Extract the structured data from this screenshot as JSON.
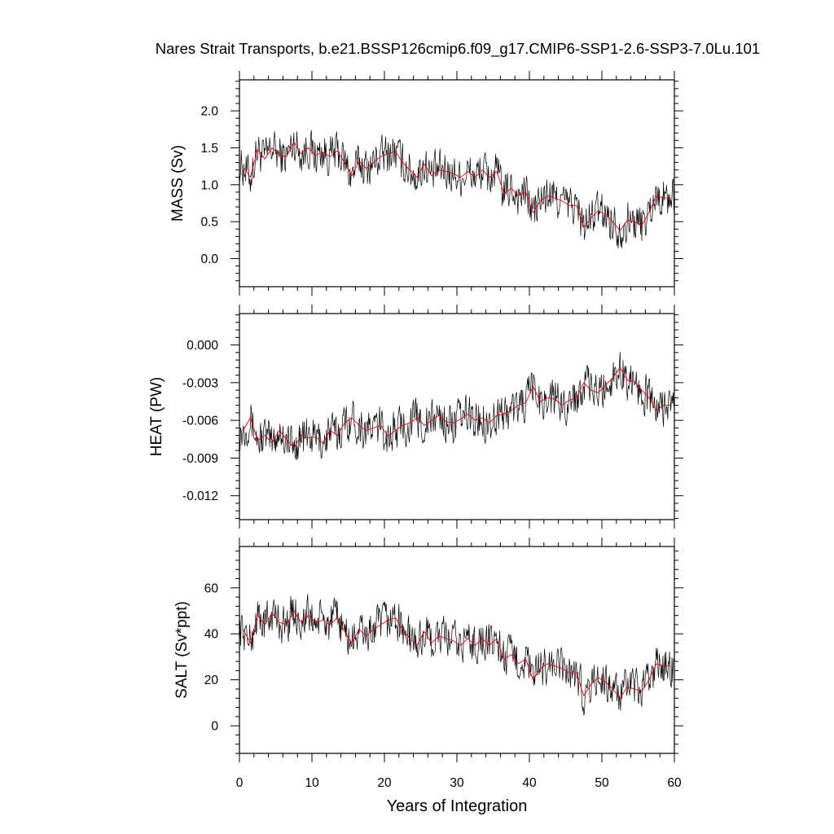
{
  "chart_data": {
    "type": "line",
    "title": "Nares Strait Transports, b.e21.BSSP126cmip6.f09_g17.CMIP6-SSP1-2.6-SSP3-7.0Lu.101",
    "xlabel": "Years of Integration",
    "xlim": [
      0,
      60
    ],
    "xticks": [
      0,
      10,
      20,
      30,
      40,
      50,
      60
    ],
    "xtick_labels": [
      "0",
      "10",
      "20",
      "30",
      "40",
      "50",
      "60"
    ],
    "grid": false,
    "line_colors": {
      "monthly": "#000000",
      "annual": "#e8000b"
    },
    "panels": [
      {
        "ylabel": "MASS (Sv)",
        "ylim": [
          -0.38,
          2.42
        ],
        "yticks": [
          0.0,
          0.5,
          1.0,
          1.5,
          2.0
        ],
        "ytick_labels": [
          "0.0",
          "0.5",
          "1.0",
          "1.5",
          "2.0"
        ],
        "annual": {
          "x": [
            0.5,
            1.5,
            2.5,
            3.5,
            4.5,
            5.5,
            6.5,
            7.5,
            8.5,
            9.5,
            10.5,
            11.5,
            12.5,
            13.5,
            14.5,
            15.5,
            16.5,
            17.5,
            18.5,
            19.5,
            20.5,
            21.5,
            22.5,
            23.5,
            24.5,
            25.5,
            26.5,
            27.5,
            28.5,
            29.5,
            30.5,
            31.5,
            32.5,
            33.5,
            34.5,
            35.5,
            36.5,
            37.5,
            38.5,
            39.5,
            40.5,
            41.5,
            42.5,
            43.5,
            44.5,
            45.5,
            46.5,
            47.5,
            48.5,
            49.5,
            50.5,
            51.5,
            52.5,
            53.5,
            54.5,
            55.5,
            56.5,
            57.5,
            58.5,
            59.5
          ],
          "values": [
            1.25,
            1.1,
            1.48,
            1.35,
            1.5,
            1.4,
            1.38,
            1.58,
            1.42,
            1.5,
            1.4,
            1.44,
            1.38,
            1.46,
            1.3,
            1.12,
            1.32,
            1.22,
            1.3,
            1.38,
            1.42,
            1.45,
            1.3,
            1.2,
            1.1,
            1.28,
            1.12,
            1.2,
            1.18,
            1.15,
            1.1,
            1.18,
            1.1,
            1.2,
            1.1,
            1.18,
            0.88,
            0.95,
            0.85,
            0.9,
            0.62,
            0.78,
            0.85,
            0.82,
            0.78,
            0.72,
            0.72,
            0.42,
            0.55,
            0.65,
            0.6,
            0.5,
            0.38,
            0.52,
            0.5,
            0.45,
            0.62,
            0.85,
            0.82,
            0.82
          ]
        }
      },
      {
        "ylabel": "HEAT (PW)",
        "ylim": [
          -0.0139,
          0.0025
        ],
        "yticks": [
          -0.012,
          -0.009,
          -0.006,
          -0.003,
          0.0
        ],
        "ytick_labels": [
          "-0.012",
          "-0.009",
          "-0.006",
          "-0.003",
          "0.000"
        ],
        "annual": {
          "x": [
            0.5,
            1.5,
            2.5,
            3.5,
            4.5,
            5.5,
            6.5,
            7.5,
            8.5,
            9.5,
            10.5,
            11.5,
            12.5,
            13.5,
            14.5,
            15.5,
            16.5,
            17.5,
            18.5,
            19.5,
            20.5,
            21.5,
            22.5,
            23.5,
            24.5,
            25.5,
            26.5,
            27.5,
            28.5,
            29.5,
            30.5,
            31.5,
            32.5,
            33.5,
            34.5,
            35.5,
            36.5,
            37.5,
            38.5,
            39.5,
            40.5,
            41.5,
            42.5,
            43.5,
            44.5,
            45.5,
            46.5,
            47.5,
            48.5,
            49.5,
            50.5,
            51.5,
            52.5,
            53.5,
            54.5,
            55.5,
            56.5,
            57.5,
            58.5,
            59.5
          ],
          "values": [
            -0.0068,
            -0.0058,
            -0.0076,
            -0.0072,
            -0.0078,
            -0.0068,
            -0.0075,
            -0.0082,
            -0.0072,
            -0.0074,
            -0.0073,
            -0.0078,
            -0.0068,
            -0.0072,
            -0.0062,
            -0.0058,
            -0.0064,
            -0.0068,
            -0.0066,
            -0.0064,
            -0.0073,
            -0.0068,
            -0.0064,
            -0.0062,
            -0.0058,
            -0.0064,
            -0.006,
            -0.0056,
            -0.0061,
            -0.0062,
            -0.0059,
            -0.0055,
            -0.006,
            -0.0058,
            -0.0062,
            -0.0056,
            -0.0055,
            -0.0052,
            -0.0048,
            -0.0046,
            -0.0033,
            -0.0045,
            -0.0042,
            -0.0043,
            -0.0048,
            -0.0044,
            -0.0042,
            -0.003,
            -0.0036,
            -0.0038,
            -0.0032,
            -0.0026,
            -0.0018,
            -0.0028,
            -0.0029,
            -0.0036,
            -0.0042,
            -0.0052,
            -0.0048,
            -0.0048
          ]
        }
      },
      {
        "ylabel": "SALT (Sv*ppt)",
        "ylim": [
          -12,
          78
        ],
        "yticks": [
          0,
          20,
          40,
          60
        ],
        "ytick_labels": [
          "0",
          "20",
          "40",
          "60"
        ],
        "annual": {
          "x": [
            0.5,
            1.5,
            2.5,
            3.5,
            4.5,
            5.5,
            6.5,
            7.5,
            8.5,
            9.5,
            10.5,
            11.5,
            12.5,
            13.5,
            14.5,
            15.5,
            16.5,
            17.5,
            18.5,
            19.5,
            20.5,
            21.5,
            22.5,
            23.5,
            24.5,
            25.5,
            26.5,
            27.5,
            28.5,
            29.5,
            30.5,
            31.5,
            32.5,
            33.5,
            34.5,
            35.5,
            36.5,
            37.5,
            38.5,
            39.5,
            40.5,
            41.5,
            42.5,
            43.5,
            44.5,
            45.5,
            46.5,
            47.5,
            48.5,
            49.5,
            50.5,
            51.5,
            52.5,
            53.5,
            54.5,
            55.5,
            56.5,
            57.5,
            58.5,
            59.5
          ],
          "values": [
            42,
            36,
            48,
            44,
            49,
            45,
            44,
            50,
            45,
            48,
            45,
            46,
            44,
            47,
            41,
            36,
            42,
            39,
            42,
            44,
            46,
            47,
            42,
            38,
            35,
            41,
            36,
            39,
            38,
            37,
            35,
            38,
            35,
            38,
            35,
            38,
            29,
            31,
            27,
            29,
            20,
            25,
            27,
            26,
            25,
            23,
            23,
            13,
            18,
            21,
            19,
            16,
            12,
            17,
            16,
            15,
            20,
            27,
            26,
            26
          ]
        }
      }
    ]
  }
}
